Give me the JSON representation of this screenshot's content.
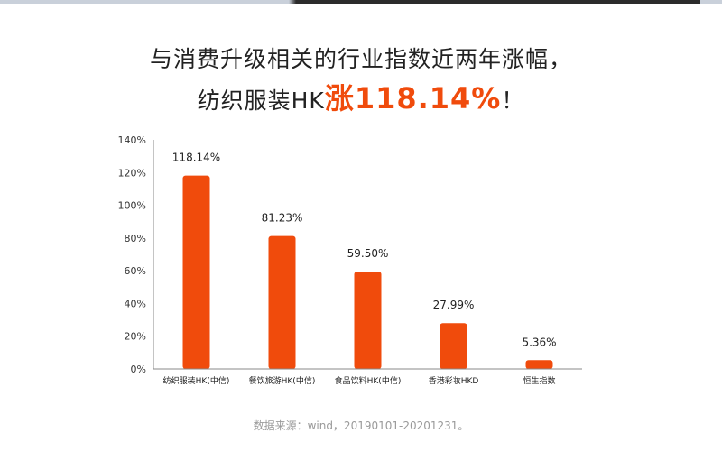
{
  "headline": {
    "line1": "与消费升级相关的行业指数近两年涨幅，",
    "line2_prefix": "纺织服装HK",
    "line2_accent": "涨118.14%",
    "line2_suffix": "！"
  },
  "source_note": "数据来源：wind，20190101-20201231。",
  "colors": {
    "bar": "#f04b0c",
    "accent": "#f04b0c",
    "text": "#222222",
    "axis": "#888888",
    "source": "#9a9a9a"
  },
  "chart_data": {
    "type": "bar",
    "categories": [
      "纺织服装HK(中信)",
      "餐饮旅游HK(中信)",
      "食品饮料HK(中信)",
      "香港彩妆HKD",
      "恒生指数"
    ],
    "values": [
      118.14,
      81.23,
      59.5,
      27.99,
      5.36
    ],
    "data_labels": [
      "118.14%",
      "81.23%",
      "59.50%",
      "27.99%",
      "5.36%"
    ],
    "ylim": [
      0,
      140
    ],
    "yticks": [
      "0%",
      "20%",
      "40%",
      "60%",
      "80%",
      "100%",
      "120%",
      "140%"
    ],
    "ytick_values": [
      0,
      20,
      40,
      60,
      80,
      100,
      120,
      140
    ],
    "grid": false,
    "legend": "none"
  }
}
